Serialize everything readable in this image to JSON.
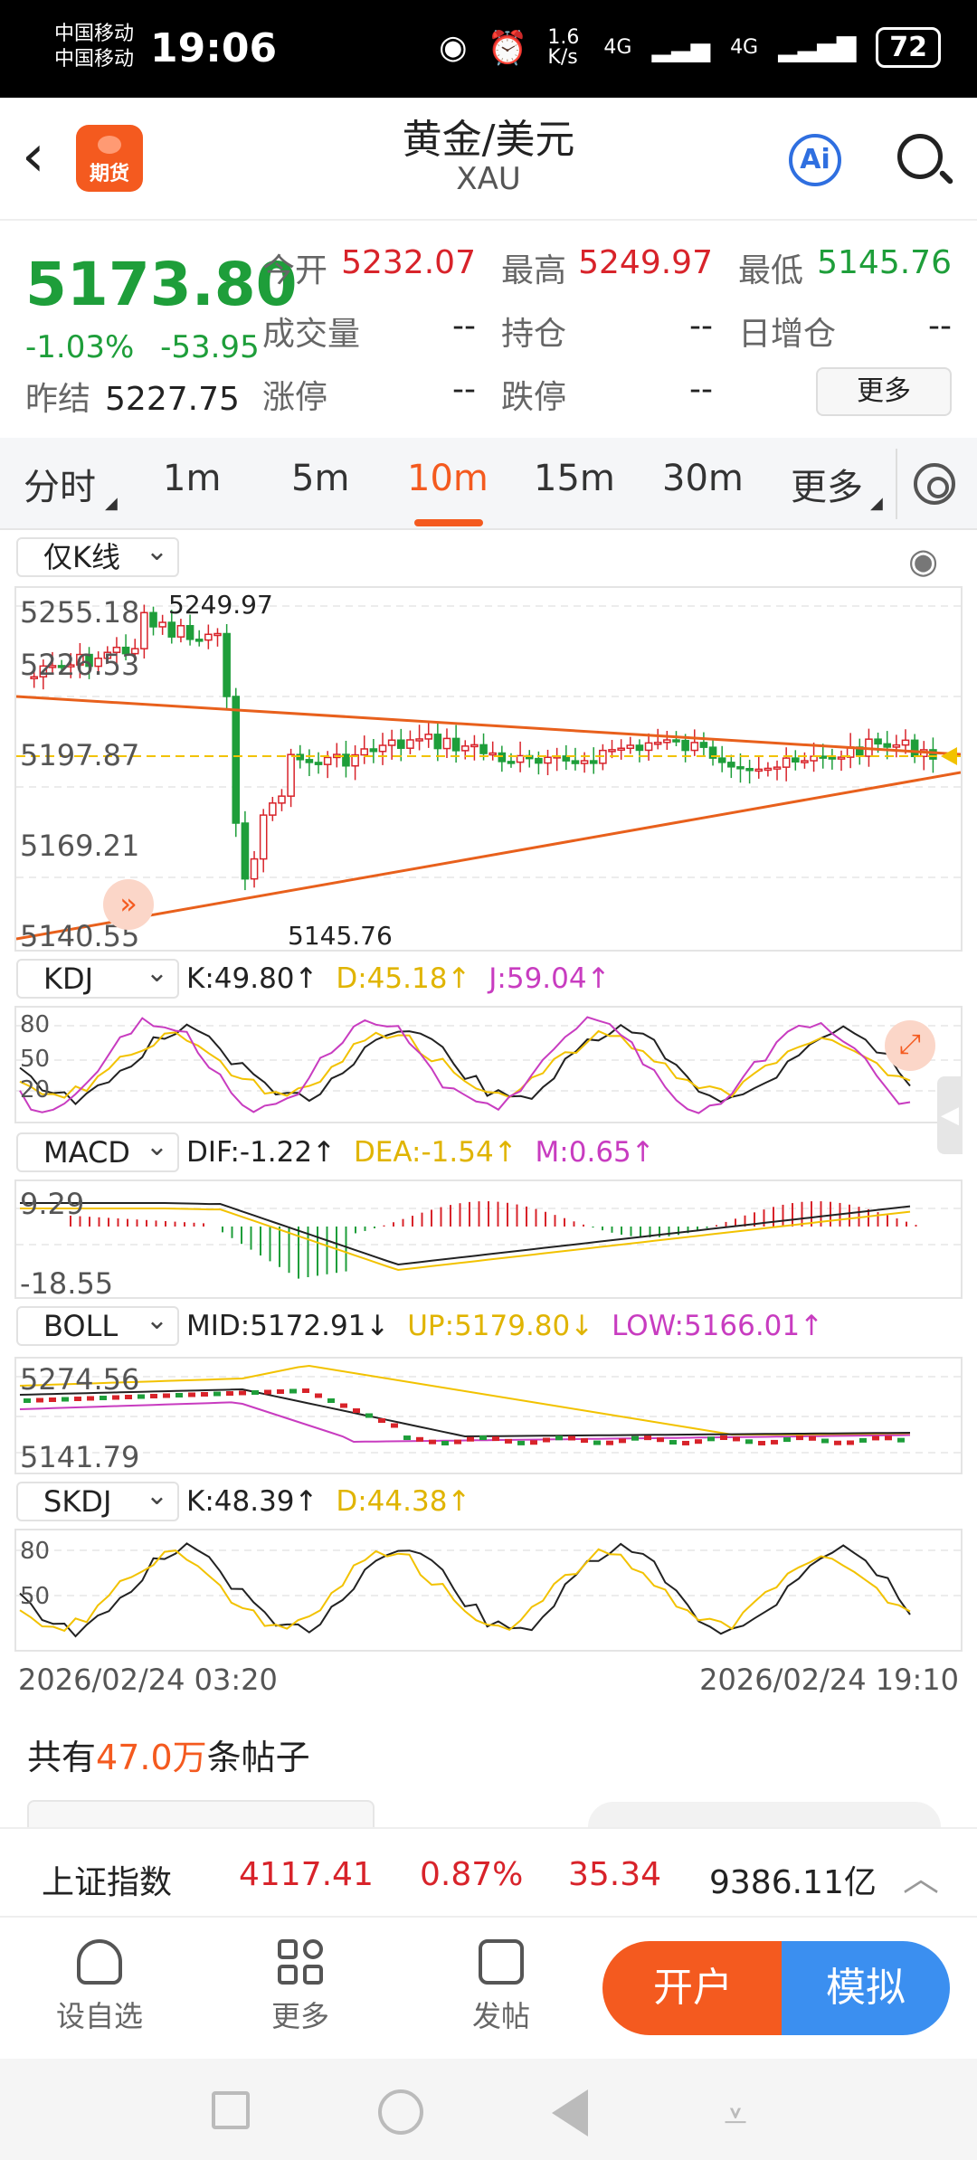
{
  "status_bar": {
    "carrier1": "中国移动",
    "carrier2": "中国移动",
    "time": "19:06",
    "net_speed": "1.6 K/s",
    "signal1": "4G",
    "signal2": "4G",
    "battery": "72"
  },
  "header": {
    "back_icon": "chevron-left-icon",
    "app_badge": "期货",
    "title": "黄金/美元",
    "subtitle": "XAU",
    "ai_label": "Ai",
    "search_icon": "search-icon"
  },
  "quote": {
    "price": "5173.80",
    "change_pct": "-1.03%",
    "change_abs": "-53.95",
    "prev_settle_label": "昨结",
    "prev_settle": "5227.75",
    "open_label": "今开",
    "open": "5232.07",
    "high_label": "最高",
    "high": "5249.97",
    "low_label": "最低",
    "low": "5145.76",
    "volume_label": "成交量",
    "volume": "--",
    "oi_label": "持仓",
    "oi": "--",
    "daily_oi_label": "日增仓",
    "daily_oi": "--",
    "limit_up_label": "涨停",
    "limit_up": "--",
    "limit_down_label": "跌停",
    "limit_down": "--",
    "more_button": "更多"
  },
  "tabs": {
    "items": [
      "分时",
      "1m",
      "5m",
      "10m",
      "15m",
      "30m",
      "更多"
    ],
    "active": "10m"
  },
  "chart": {
    "main_dropdown": "仅K线",
    "y_labels": [
      "5255.18",
      "5226.53",
      "5197.87",
      "5169.21",
      "5140.55"
    ],
    "high_marker": "5249.97",
    "low_marker": "5145.76",
    "kdj": {
      "dropdown": "KDJ",
      "k": "K:49.80↑",
      "d": "D:45.18↑",
      "j": "J:59.04↑",
      "levels": [
        "80",
        "50",
        "20"
      ]
    },
    "macd": {
      "dropdown": "MACD",
      "dif": "DIF:-1.22↑",
      "dea": "DEA:-1.54↑",
      "m": "M:0.65↑",
      "y_top": "9.29",
      "y_bottom": "-18.55"
    },
    "boll": {
      "dropdown": "BOLL",
      "mid": "MID:5172.91↓",
      "up": "UP:5179.80↓",
      "low": "LOW:5166.01↑",
      "y_top": "5274.56",
      "y_bottom": "5141.79"
    },
    "skdj": {
      "dropdown": "SKDJ",
      "k": "K:48.39↑",
      "d": "D:44.38↑",
      "levels": [
        "80",
        "50"
      ]
    },
    "start_time": "2026/02/24 03:20",
    "end_time": "2026/02/24 19:10",
    "colors": {
      "up": "#d8232a",
      "down": "#1e9e3a",
      "trend": "#e8601c",
      "avg": "#f2c200"
    }
  },
  "posts": {
    "prefix": "共有",
    "count": "47.0万",
    "suffix": "条帖子"
  },
  "ticker": {
    "name": "上证指数",
    "value": "4117.41",
    "pct": "0.87%",
    "change": "35.34",
    "turnover": "9386.11亿"
  },
  "bottom_nav": {
    "items": [
      "设自选",
      "更多",
      "发帖"
    ],
    "open_account": "开户",
    "simulate": "模拟"
  }
}
